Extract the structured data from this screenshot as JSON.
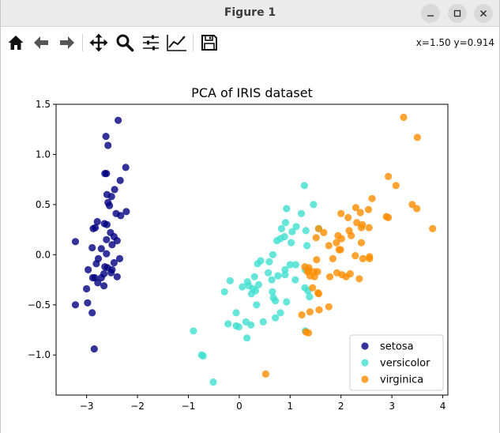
{
  "window": {
    "title": "Figure 1",
    "controls": [
      "minimize",
      "maximize",
      "close"
    ]
  },
  "toolbar": {
    "buttons": [
      {
        "name": "home",
        "icon": "home-icon"
      },
      {
        "name": "back",
        "icon": "arrow-left-icon"
      },
      {
        "name": "forward",
        "icon": "arrow-right-icon"
      },
      {
        "name": "pan",
        "icon": "move-icon"
      },
      {
        "name": "zoom",
        "icon": "magnifier-icon"
      },
      {
        "name": "configure-subplots",
        "icon": "sliders-icon"
      },
      {
        "name": "edit-axis",
        "icon": "line-chart-icon"
      },
      {
        "name": "save",
        "icon": "floppy-disk-icon"
      }
    ],
    "coordinates": "x=1.50 y=0.914"
  },
  "chart_data": {
    "type": "scatter",
    "title": "PCA of IRIS dataset",
    "xlabel": "",
    "ylabel": "",
    "xlim": [
      -3.6,
      4.1
    ],
    "ylim": [
      -1.4,
      1.5
    ],
    "xticks": [
      {
        "value": -3,
        "label": "−3"
      },
      {
        "value": -2,
        "label": "−2"
      },
      {
        "value": -1,
        "label": "−1"
      },
      {
        "value": 0,
        "label": "0"
      },
      {
        "value": 1,
        "label": "1"
      },
      {
        "value": 2,
        "label": "2"
      },
      {
        "value": 3,
        "label": "3"
      },
      {
        "value": 4,
        "label": "4"
      }
    ],
    "yticks": [
      {
        "value": 1.5,
        "label": "1.5"
      },
      {
        "value": 1.0,
        "label": "1.0"
      },
      {
        "value": 0.5,
        "label": "0.5"
      },
      {
        "value": 0.0,
        "label": "0.0"
      },
      {
        "value": -0.5,
        "label": "−0.5"
      },
      {
        "value": -1.0,
        "label": "−1.0"
      }
    ],
    "grid": false,
    "legend_position": "lower-right",
    "series": [
      {
        "name": "setosa",
        "color": "#000080",
        "points": [
          [
            -2.38,
            1.34
          ],
          [
            -2.62,
            1.18
          ],
          [
            -2.58,
            1.09
          ],
          [
            -2.23,
            0.87
          ],
          [
            -2.64,
            0.81
          ],
          [
            -2.61,
            0.81
          ],
          [
            -2.34,
            0.74
          ],
          [
            -2.45,
            0.65
          ],
          [
            -2.6,
            0.6
          ],
          [
            -2.51,
            0.58
          ],
          [
            -2.58,
            0.52
          ],
          [
            -2.55,
            0.49
          ],
          [
            -2.22,
            0.43
          ],
          [
            -2.42,
            0.41
          ],
          [
            -2.33,
            0.39
          ],
          [
            -2.79,
            0.33
          ],
          [
            -2.65,
            0.31
          ],
          [
            -2.6,
            0.3
          ],
          [
            -2.83,
            0.27
          ],
          [
            -2.87,
            0.26
          ],
          [
            -2.53,
            0.22
          ],
          [
            -2.46,
            0.18
          ],
          [
            -2.61,
            0.15
          ],
          [
            -2.4,
            0.14
          ],
          [
            -3.22,
            0.13
          ],
          [
            -2.5,
            0.1
          ],
          [
            -2.89,
            0.07
          ],
          [
            -2.71,
            0.06
          ],
          [
            -2.61,
            0.01
          ],
          [
            -2.35,
            -0.04
          ],
          [
            -2.77,
            -0.04
          ],
          [
            -2.46,
            -0.08
          ],
          [
            -2.81,
            -0.09
          ],
          [
            -2.64,
            -0.12
          ],
          [
            -2.59,
            -0.13
          ],
          [
            -2.5,
            -0.15
          ],
          [
            -2.97,
            -0.15
          ],
          [
            -2.52,
            -0.18
          ],
          [
            -2.66,
            -0.19
          ],
          [
            -2.84,
            -0.23
          ],
          [
            -2.4,
            -0.22
          ],
          [
            -2.88,
            -0.23
          ],
          [
            -2.71,
            -0.23
          ],
          [
            -2.78,
            -0.28
          ],
          [
            -2.66,
            -0.31
          ],
          [
            -3.0,
            -0.34
          ],
          [
            -2.98,
            -0.48
          ],
          [
            -3.22,
            -0.5
          ],
          [
            -2.89,
            -0.58
          ],
          [
            -2.85,
            -0.94
          ]
        ]
      },
      {
        "name": "versicolor",
        "color": "#40e0d0",
        "points": [
          [
            1.28,
            0.69
          ],
          [
            0.93,
            0.46
          ],
          [
            1.46,
            0.5
          ],
          [
            1.22,
            0.41
          ],
          [
            0.91,
            0.32
          ],
          [
            0.83,
            0.26
          ],
          [
            1.31,
            0.24
          ],
          [
            1.12,
            0.28
          ],
          [
            1.56,
            0.26
          ],
          [
            0.81,
            0.16
          ],
          [
            1.04,
            0.23
          ],
          [
            0.74,
            0.14
          ],
          [
            0.89,
            0.18
          ],
          [
            1.02,
            0.12
          ],
          [
            1.33,
            0.09
          ],
          [
            0.66,
            0.0
          ],
          [
            0.42,
            -0.06
          ],
          [
            0.59,
            -0.07
          ],
          [
            1.0,
            -0.1
          ],
          [
            1.11,
            -0.1
          ],
          [
            0.9,
            -0.2
          ],
          [
            0.9,
            -0.15
          ],
          [
            1.3,
            -0.15
          ],
          [
            0.57,
            -0.18
          ],
          [
            0.36,
            -0.09
          ],
          [
            0.76,
            -0.21
          ],
          [
            0.64,
            -0.25
          ],
          [
            0.3,
            -0.22
          ],
          [
            0.38,
            -0.3
          ],
          [
            -0.18,
            -0.26
          ],
          [
            1.1,
            -0.25
          ],
          [
            0.16,
            -0.27
          ],
          [
            0.27,
            -0.34
          ],
          [
            0.19,
            -0.31
          ],
          [
            1.29,
            -0.33
          ],
          [
            1.35,
            -0.36
          ],
          [
            0.06,
            -0.32
          ],
          [
            0.65,
            -0.37
          ],
          [
            0.32,
            -0.36
          ],
          [
            0.24,
            -0.39
          ],
          [
            -0.29,
            -0.37
          ],
          [
            1.38,
            -0.42
          ],
          [
            0.67,
            -0.43
          ],
          [
            0.71,
            -0.46
          ],
          [
            0.93,
            -0.47
          ],
          [
            0.34,
            -0.5
          ],
          [
            -0.06,
            -0.58
          ],
          [
            0.81,
            -0.58
          ],
          [
            0.71,
            -0.63
          ],
          [
            0.13,
            -0.67
          ],
          [
            1.3,
            -0.76
          ],
          [
            0.23,
            -0.7
          ],
          [
            0.47,
            -0.67
          ],
          [
            -0.22,
            -0.69
          ],
          [
            -0.06,
            -0.71
          ],
          [
            -0.01,
            -0.72
          ],
          [
            0.15,
            -0.83
          ],
          [
            -0.9,
            -0.76
          ],
          [
            -0.74,
            -1.0
          ],
          [
            -0.71,
            -1.01
          ],
          [
            -0.51,
            -1.27
          ]
        ]
      },
      {
        "name": "virginica",
        "color": "#ff8c00",
        "points": [
          [
            3.23,
            1.37
          ],
          [
            3.5,
            1.17
          ],
          [
            2.93,
            0.78
          ],
          [
            3.08,
            0.69
          ],
          [
            2.61,
            0.56
          ],
          [
            3.4,
            0.5
          ],
          [
            2.29,
            0.47
          ],
          [
            2.54,
            0.45
          ],
          [
            3.49,
            0.46
          ],
          [
            2.38,
            0.42
          ],
          [
            2.0,
            0.41
          ],
          [
            2.14,
            0.37
          ],
          [
            2.89,
            0.38
          ],
          [
            2.93,
            0.37
          ],
          [
            2.31,
            0.32
          ],
          [
            2.42,
            0.3
          ],
          [
            2.16,
            0.24
          ],
          [
            2.55,
            0.27
          ],
          [
            3.8,
            0.26
          ],
          [
            2.4,
            0.27
          ],
          [
            1.66,
            0.22
          ],
          [
            1.94,
            0.19
          ],
          [
            2.2,
            0.19
          ],
          [
            2.01,
            0.16
          ],
          [
            1.51,
            0.17
          ],
          [
            1.56,
            0.26
          ],
          [
            1.91,
            0.12
          ],
          [
            2.4,
            0.12
          ],
          [
            1.76,
            0.09
          ],
          [
            1.99,
            0.05
          ],
          [
            1.96,
            0.05
          ],
          [
            2.56,
            -0.02
          ],
          [
            2.28,
            -0.01
          ],
          [
            2.43,
            -0.04
          ],
          [
            2.56,
            -0.04
          ],
          [
            1.52,
            -0.05
          ],
          [
            1.84,
            -0.04
          ],
          [
            1.29,
            -0.12
          ],
          [
            1.37,
            -0.13
          ],
          [
            1.47,
            -0.17
          ],
          [
            1.36,
            -0.16
          ],
          [
            1.54,
            -0.17
          ],
          [
            1.34,
            -0.17
          ],
          [
            1.39,
            -0.21
          ],
          [
            1.48,
            -0.22
          ],
          [
            1.92,
            -0.18
          ],
          [
            2.18,
            -0.19
          ],
          [
            2.1,
            -0.22
          ],
          [
            2.02,
            -0.2
          ],
          [
            2.36,
            -0.24
          ],
          [
            1.78,
            -0.22
          ],
          [
            1.44,
            -0.33
          ],
          [
            1.55,
            -0.38
          ],
          [
            1.56,
            -0.39
          ],
          [
            1.76,
            -0.52
          ],
          [
            1.57,
            -0.55
          ],
          [
            1.39,
            -0.57
          ],
          [
            1.23,
            -0.6
          ],
          [
            1.31,
            -0.77
          ],
          [
            1.36,
            -0.78
          ],
          [
            0.52,
            -1.19
          ]
        ]
      }
    ]
  }
}
